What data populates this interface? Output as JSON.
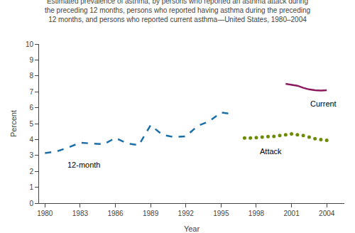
{
  "chart_data": {
    "type": "line",
    "title": "Estimated prevalence of asthma, by persons who reported an asthma attack during\nthe preceding 12 months, persons who reported having asthma during the preceding\n12 months, and persons who reported current asthma—United States, 1980–2004",
    "x_label": "Year",
    "y_label": "Percent",
    "xlim": [
      1979.5,
      2005.5
    ],
    "ylim": [
      0,
      10
    ],
    "xticks": [
      1980,
      1983,
      1986,
      1989,
      1992,
      1995,
      1998,
      2001,
      2004
    ],
    "yticks": [
      0,
      1,
      2,
      3,
      4,
      5,
      6,
      7,
      8,
      9,
      10
    ],
    "grid": false,
    "series": [
      {
        "type": "line",
        "line_style": "dashed",
        "color": "#1a6fa8",
        "x": [
          1980,
          1981,
          1982,
          1983,
          1984,
          1985,
          1986,
          1987,
          1988,
          1989,
          1990,
          1991,
          1992,
          1993,
          1994,
          1995,
          1996
        ],
        "values": [
          3.15,
          3.25,
          3.5,
          3.8,
          3.75,
          3.7,
          4.1,
          3.75,
          3.65,
          4.9,
          4.3,
          4.15,
          4.2,
          4.85,
          5.15,
          5.7,
          5.6
        ]
      },
      {
        "type": "scatter",
        "marker": "circle",
        "color": "#6b8c00",
        "x": [
          1997,
          1997.5,
          1998,
          1998.5,
          1999,
          1999.5,
          2000,
          2000.5,
          2001,
          2001.5,
          2002,
          2002.5,
          2003,
          2003.5,
          2004
        ],
        "values": [
          4.1,
          4.1,
          4.12,
          4.15,
          4.18,
          4.2,
          4.25,
          4.3,
          4.35,
          4.3,
          4.25,
          4.15,
          4.05,
          4.0,
          3.95
        ]
      },
      {
        "type": "line",
        "line_style": "solid",
        "color": "#8b1a5e",
        "x": [
          2000.5,
          2001,
          2001.5,
          2002,
          2002.5,
          2003,
          2003.5,
          2004
        ],
        "values": [
          7.5,
          7.45,
          7.38,
          7.25,
          7.15,
          7.1,
          7.08,
          7.1
        ]
      }
    ],
    "annotations": [
      {
        "text": "12-month",
        "x": 1981.8,
        "y": 2.75
      },
      {
        "text": "Attack",
        "x": 1998.2,
        "y": 3.6
      },
      {
        "text": "Current",
        "x": 2002.5,
        "y": 6.62
      }
    ]
  }
}
